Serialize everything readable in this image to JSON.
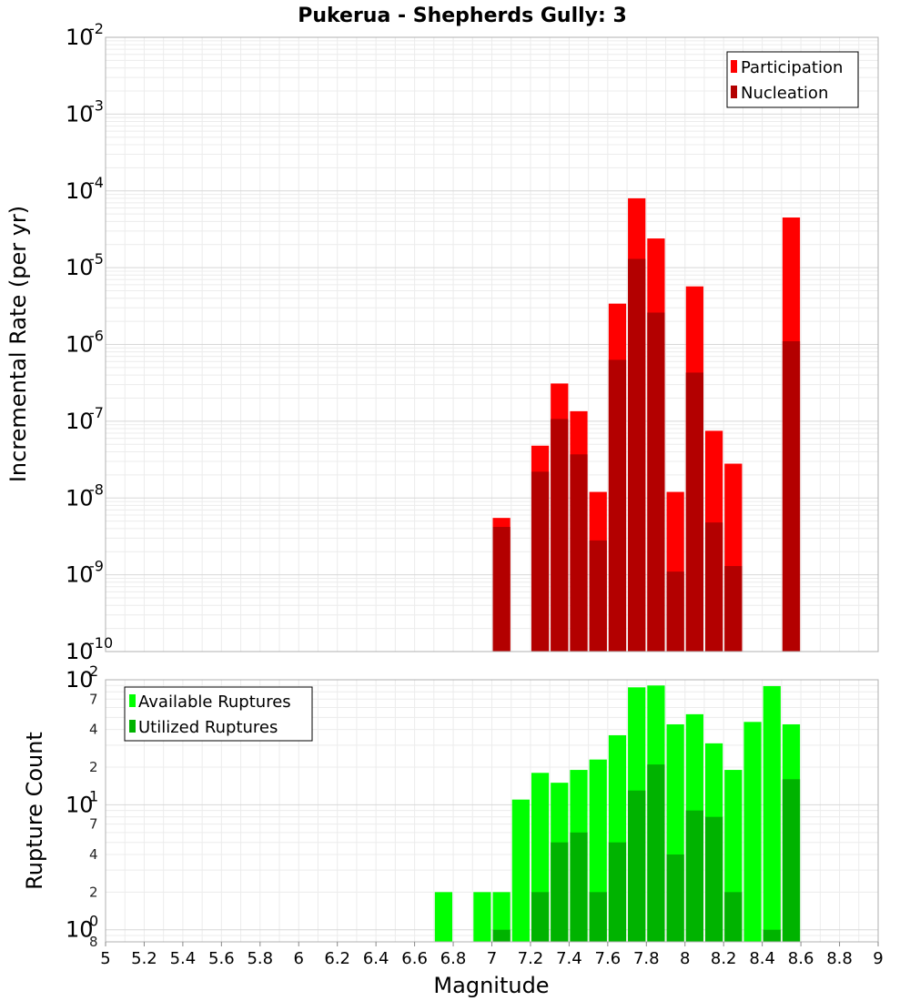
{
  "chart_data": [
    {
      "type": "bar",
      "title": "Pukerua - Shepherds Gully: 3",
      "xlabel": "",
      "ylabel": "Incremental Rate (per yr)",
      "yscale": "log",
      "ylim": [
        1e-10,
        0.01
      ],
      "xlim": [
        5,
        9
      ],
      "grid": true,
      "legend_position": "top-right",
      "y_tick_labels": [
        {
          "base": "10",
          "exp": "-10",
          "value": 1e-10
        },
        {
          "base": "10",
          "exp": "-9",
          "value": 1e-09
        },
        {
          "base": "10",
          "exp": "-8",
          "value": 1e-08
        },
        {
          "base": "10",
          "exp": "-7",
          "value": 1e-07
        },
        {
          "base": "10",
          "exp": "-6",
          "value": 1e-06
        },
        {
          "base": "10",
          "exp": "-5",
          "value": 1e-05
        },
        {
          "base": "10",
          "exp": "-4",
          "value": 0.0001
        },
        {
          "base": "10",
          "exp": "-3",
          "value": 0.001
        },
        {
          "base": "10",
          "exp": "-2",
          "value": 0.01
        }
      ],
      "x": [
        7.05,
        7.25,
        7.35,
        7.45,
        7.55,
        7.65,
        7.75,
        7.85,
        7.95,
        8.05,
        8.15,
        8.25,
        8.55
      ],
      "series": [
        {
          "name": "Participation",
          "color": "#ff0000",
          "values": [
            5.5e-09,
            4.8e-08,
            3.1e-07,
            1.35e-07,
            1.2e-08,
            3.4e-06,
            8e-05,
            2.4e-05,
            1.2e-08,
            5.7e-06,
            7.5e-08,
            2.8e-08,
            4.5e-05
          ]
        },
        {
          "name": "Nucleation",
          "color": "#b30000",
          "values": [
            4.2e-09,
            2.2e-08,
            1.07e-07,
            3.7e-08,
            2.8e-09,
            6.3e-07,
            1.3e-05,
            2.6e-06,
            1.1e-09,
            4.3e-07,
            4.8e-09,
            1.3e-09,
            1.1e-06
          ]
        }
      ]
    },
    {
      "type": "bar",
      "title": "",
      "xlabel": "Magnitude",
      "ylabel": "Rupture Count",
      "yscale": "log",
      "ylim": [
        0.8,
        100
      ],
      "xlim": [
        5,
        9
      ],
      "grid": true,
      "legend_position": "top-left",
      "x_ticks": [
        "5",
        "5.2",
        "5.4",
        "5.6",
        "5.8",
        "6",
        "6.2",
        "6.4",
        "6.6",
        "6.8",
        "7",
        "7.2",
        "7.4",
        "7.6",
        "7.8",
        "8",
        "8.2",
        "8.4",
        "8.6",
        "8.8",
        "9"
      ],
      "y_tick_labels": [
        {
          "base": "10",
          "exp": "2",
          "value": 100
        },
        {
          "base": "10",
          "exp": "1",
          "value": 10
        },
        {
          "base": "10",
          "exp": "0",
          "value": 1
        }
      ],
      "y_minor_tick_labels": [
        {
          "label": "7",
          "value": 70
        },
        {
          "label": "4",
          "value": 40
        },
        {
          "label": "2",
          "value": 20
        },
        {
          "label": "7",
          "value": 7
        },
        {
          "label": "4",
          "value": 4
        },
        {
          "label": "2",
          "value": 2
        },
        {
          "label": "8",
          "value": 0.8
        }
      ],
      "x": [
        6.75,
        6.95,
        7.05,
        7.15,
        7.25,
        7.35,
        7.45,
        7.55,
        7.65,
        7.75,
        7.85,
        7.95,
        8.05,
        8.15,
        8.25,
        8.35,
        8.45,
        8.55
      ],
      "series": [
        {
          "name": "Available Ruptures",
          "color": "#00ff00",
          "values": [
            2,
            2,
            2,
            11,
            18,
            15,
            19,
            23,
            36,
            87,
            90,
            44,
            53,
            31,
            19,
            46,
            89,
            44
          ]
        },
        {
          "name": "Utilized Ruptures",
          "color": "#00b300",
          "values": [
            0,
            0,
            1,
            0,
            2,
            5,
            6,
            2,
            5,
            13,
            21,
            4,
            9,
            8,
            2,
            0,
            1,
            16
          ]
        }
      ]
    }
  ]
}
